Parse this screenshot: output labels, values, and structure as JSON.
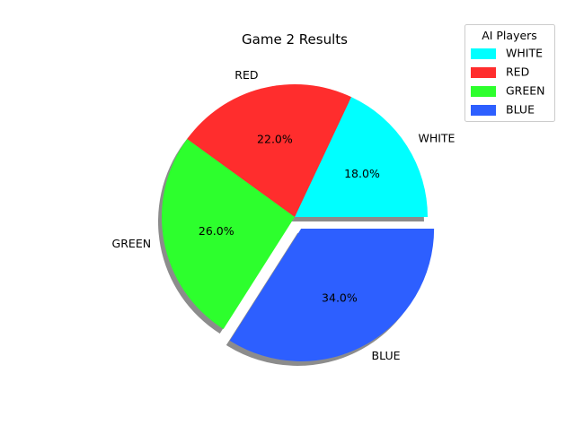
{
  "chart_data": {
    "type": "pie",
    "title": "Game 2 Results",
    "labels": [
      "WHITE",
      "RED",
      "GREEN",
      "BLUE"
    ],
    "values": [
      18.0,
      22.0,
      26.0,
      34.0
    ],
    "value_labels": [
      "18.0%",
      "22.0%",
      "26.0%",
      "34.0%"
    ],
    "colors": [
      "#00FFFF",
      "#FF2D2D",
      "#2DFF2D",
      "#2D5FFF"
    ],
    "explode": [
      0,
      0,
      0,
      0.1
    ],
    "shadow": true,
    "start_angle_deg": 0,
    "direction": "counterclockwise",
    "legend": {
      "title": "AI Players",
      "placement": "upper-right",
      "entries": [
        "WHITE",
        "RED",
        "GREEN",
        "BLUE"
      ]
    }
  }
}
